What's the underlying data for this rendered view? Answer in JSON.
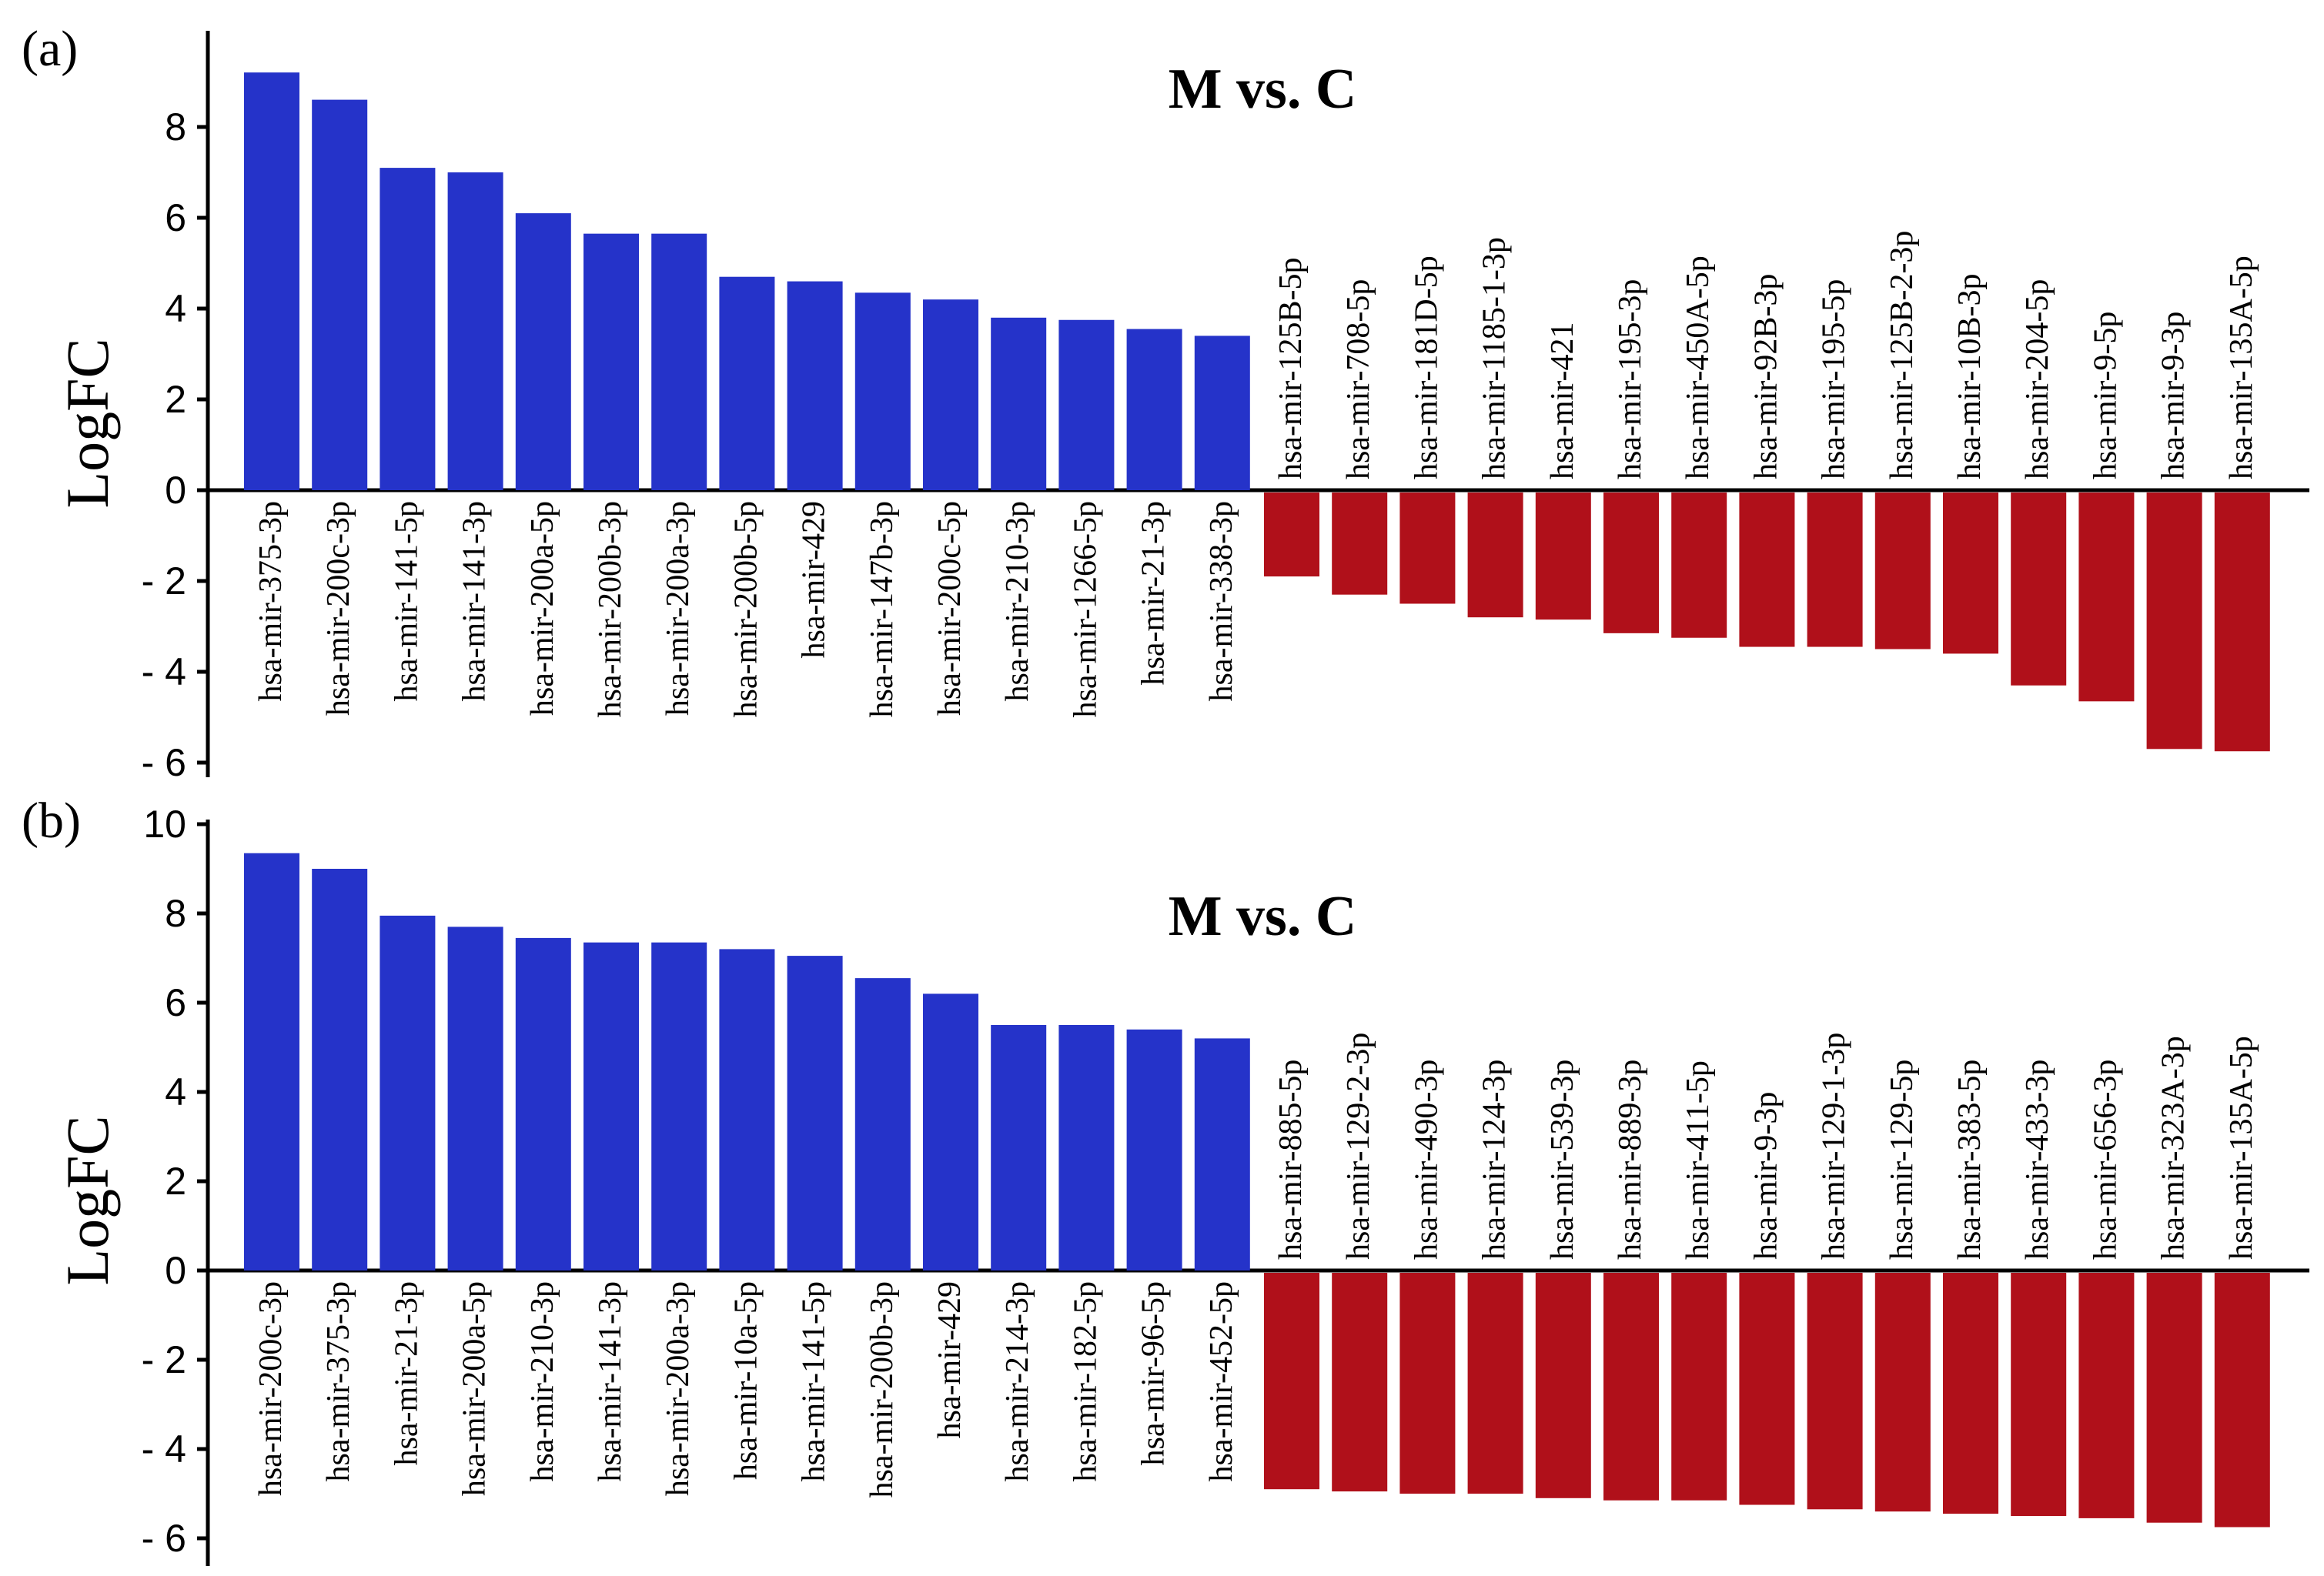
{
  "chart_data": [
    {
      "type": "bar",
      "panel_label": "(a)",
      "title": "M vs. C",
      "ylabel": "LogFC",
      "xlabel": "",
      "ylim": [
        -6,
        9.5
      ],
      "yticks": [
        8,
        6,
        4,
        2,
        0,
        -2,
        -4,
        -6
      ],
      "ytick_labels": [
        "8",
        "6",
        "4",
        "2",
        "0",
        "- 2",
        "- 4",
        "- 6"
      ],
      "grid": false,
      "colors": {
        "up": "#2533c9",
        "down": "#b0101a"
      },
      "up_categories": [
        "hsa-mir-375-3p",
        "hsa-mir-200c-3p",
        "hsa-mir-141-5p",
        "hsa-mir-141-3p",
        "hsa-mir-200a-5p",
        "hsa-mir-200b-3p",
        "hsa-mir-200a-3p",
        "hsa-mir-200b-5p",
        "hsa-mir-429",
        "hsa-mir-147b-3p",
        "hsa-mir-200c-5p",
        "hsa-mir-210-3p",
        "hsa-mir-1266-5p",
        "hsa-mir-21-3p",
        "hsa-mir-338-3p"
      ],
      "up_values": [
        9.2,
        8.6,
        7.1,
        7.0,
        6.1,
        5.65,
        5.65,
        4.7,
        4.6,
        4.35,
        4.2,
        3.8,
        3.75,
        3.55,
        3.4
      ],
      "down_categories": [
        "hsa-mir-125B-5p",
        "hsa-mir-708-5p",
        "hsa-mir-181D-5p",
        "hsa-mir-1185-1-3p",
        "hsa-mir-421",
        "hsa-mir-195-3p",
        "hsa-mir-450A-5p",
        "hsa-mir-92B-3p",
        "hsa-mir-195-5p",
        "hsa-mir-125B-2-3p",
        "hsa-mir-10B-3p",
        "hsa-mir-204-5p",
        "hsa-mir-9-5p",
        "hsa-mir-9-3p",
        "hsa-mir-135A-5p"
      ],
      "down_values": [
        -1.9,
        -2.3,
        -2.5,
        -2.8,
        -2.85,
        -3.15,
        -3.25,
        -3.45,
        -3.45,
        -3.5,
        -3.6,
        -4.3,
        -4.65,
        -5.7,
        -5.75
      ]
    },
    {
      "type": "bar",
      "panel_label": "(b)",
      "title": "M vs. C",
      "ylabel": "LogFC",
      "xlabel": "",
      "ylim": [
        -6.5,
        10
      ],
      "yticks": [
        10,
        8,
        6,
        4,
        2,
        0,
        -2,
        -4,
        -6
      ],
      "ytick_labels": [
        "10",
        "8",
        "6",
        "4",
        "2",
        "0",
        "- 2",
        "- 4",
        "- 6"
      ],
      "grid": false,
      "colors": {
        "up": "#2533c9",
        "down": "#b0101a"
      },
      "up_categories": [
        "hsa-mir-200c-3p",
        "hsa-mir-375-3p",
        "hsa-mir-21-3p",
        "hsa-mir-200a-5p",
        "hsa-mir-210-3p",
        "hsa-mir-141-3p",
        "hsa-mir-200a-3p",
        "hsa-mir-10a-5p",
        "hsa-mir-141-5p",
        "hsa-mir-200b-3p",
        "hsa-mir-429",
        "hsa-mir-214-3p",
        "hsa-mir-182-5p",
        "hsa-mir-96-5p",
        "hsa-mir-452-5p"
      ],
      "up_values": [
        9.35,
        9.0,
        7.95,
        7.7,
        7.45,
        7.35,
        7.35,
        7.2,
        7.05,
        6.55,
        6.2,
        5.5,
        5.5,
        5.4,
        5.2
      ],
      "down_categories": [
        "hsa-mir-885-5p",
        "hsa-mir-129-2-3p",
        "hsa-mir-490-3p",
        "hsa-mir-124-3p",
        "hsa-mir-539-3p",
        "hsa-mir-889-3p",
        "hsa-mir-411-5p",
        "hsa-mir-9-3p",
        "hsa-mir-129-1-3p",
        "hsa-mir-129-5p",
        "hsa-mir-383-5p",
        "hsa-mir-433-3p",
        "hsa-mir-656-3p",
        "hsa-mir-323A-3p",
        "hsa-mir-135A-5p"
      ],
      "down_values": [
        -4.9,
        -4.95,
        -5.0,
        -5.0,
        -5.1,
        -5.15,
        -5.15,
        -5.25,
        -5.35,
        -5.4,
        -5.45,
        -5.5,
        -5.55,
        -5.65,
        -5.75
      ]
    }
  ]
}
